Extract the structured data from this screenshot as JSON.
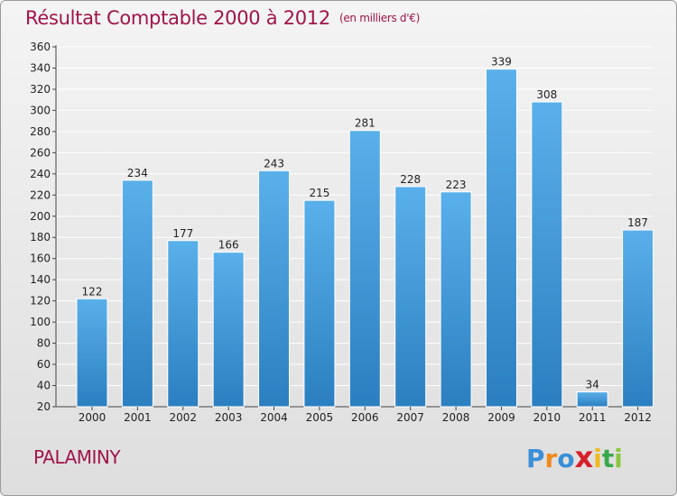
{
  "chart_data": {
    "type": "bar",
    "title": "Résultat Comptable 2000 à 2012",
    "subtitle": "(en milliers d'€)",
    "categories": [
      "2000",
      "2001",
      "2002",
      "2003",
      "2004",
      "2005",
      "2006",
      "2007",
      "2008",
      "2009",
      "2010",
      "2011",
      "2012"
    ],
    "values": [
      122,
      234,
      177,
      166,
      243,
      215,
      281,
      228,
      223,
      339,
      308,
      34,
      187
    ],
    "ylim": [
      20,
      360
    ],
    "yticks": [
      20,
      40,
      60,
      80,
      100,
      120,
      140,
      160,
      180,
      200,
      220,
      240,
      260,
      280,
      300,
      320,
      340,
      360
    ],
    "xlabel": "",
    "ylabel": "",
    "grid": true,
    "bar_color_top": "#5ab0ea",
    "bar_color_bottom": "#2b7fc0"
  },
  "footer": {
    "place": "PALAMINY",
    "brand_letters": [
      "P",
      "r",
      "o",
      "x",
      "i",
      "t",
      "i"
    ],
    "brand_colors": [
      "#3a8fd6",
      "#f08a1c",
      "#3a8fd6",
      "#d4202a",
      "#f0b81c",
      "#3aa84a",
      "#8cc63f"
    ]
  },
  "colors": {
    "title": "#a0144a",
    "grid": "#ffffff"
  }
}
